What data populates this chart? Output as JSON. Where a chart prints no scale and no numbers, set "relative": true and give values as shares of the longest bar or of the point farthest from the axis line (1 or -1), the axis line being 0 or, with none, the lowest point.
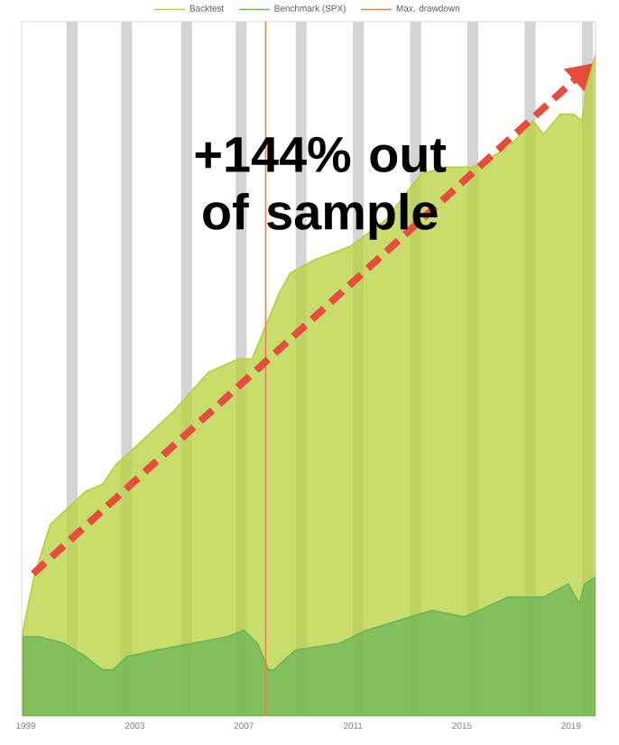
{
  "chart_data": {
    "type": "area",
    "relative": true,
    "legend": "top",
    "annotations": [
      "+144% out of sample"
    ],
    "xlim": [
      1998.85,
      2019.9
    ],
    "xticks": [
      1999,
      2003,
      2007,
      2011,
      2015,
      2019
    ],
    "ref_lines": [
      {
        "axis": "x",
        "value": 2007.8,
        "label": "Max. drawdown",
        "color": "#e8805c"
      }
    ],
    "bands": [
      {
        "axis": "x",
        "from": 2000.5,
        "to": 2000.9,
        "color": "#d4d4d4"
      },
      {
        "axis": "x",
        "from": 2002.5,
        "to": 2002.9,
        "color": "#d4d4d4"
      },
      {
        "axis": "x",
        "from": 2004.7,
        "to": 2005.1,
        "color": "#d4d4d4"
      },
      {
        "axis": "x",
        "from": 2006.7,
        "to": 2007.1,
        "color": "#d4d4d4"
      },
      {
        "axis": "x",
        "from": 2008.9,
        "to": 2009.3,
        "color": "#d4d4d4"
      },
      {
        "axis": "x",
        "from": 2011.0,
        "to": 2011.4,
        "color": "#d4d4d4"
      },
      {
        "axis": "x",
        "from": 2013.1,
        "to": 2013.5,
        "color": "#d4d4d4"
      },
      {
        "axis": "x",
        "from": 2015.2,
        "to": 2015.6,
        "color": "#d4d4d4"
      },
      {
        "axis": "x",
        "from": 2017.3,
        "to": 2017.7,
        "color": "#d4d4d4"
      },
      {
        "axis": "x",
        "from": 2019.4,
        "to": 2019.8,
        "color": "#d4d4d4"
      }
    ],
    "series": [
      {
        "name": "Backtest",
        "color": "#b5d13a",
        "x": [
          1998.9,
          1999.3,
          1999.9,
          2001.2,
          2001.8,
          2002.3,
          2003.1,
          2004.4,
          2005.7,
          2006.8,
          2007.3,
          2007.8,
          2008.0,
          2008.3,
          2008.7,
          2009.6,
          2010.9,
          2012.2,
          2013.5,
          2014.4,
          2015.4,
          2016.7,
          2017.6,
          2018.0,
          2018.6,
          2019.1,
          2019.4,
          2019.6,
          2019.9
        ],
        "values": [
          0.13,
          0.21,
          0.29,
          0.34,
          0.35,
          0.38,
          0.41,
          0.46,
          0.52,
          0.54,
          0.54,
          0.59,
          0.61,
          0.64,
          0.67,
          0.69,
          0.71,
          0.75,
          0.82,
          0.83,
          0.83,
          0.86,
          0.9,
          0.88,
          0.91,
          0.91,
          0.9,
          0.96,
          1.0
        ]
      },
      {
        "name": "Benchmark (SPX)",
        "color": "#6cb556",
        "x": [
          1998.9,
          1999.5,
          2000.4,
          2001.2,
          2001.8,
          2002.2,
          2002.7,
          2003.8,
          2005.1,
          2006.4,
          2007.0,
          2007.5,
          2007.9,
          2008.1,
          2008.9,
          2010.5,
          2011.5,
          2013.9,
          2015.1,
          2016.7,
          2018.0,
          2018.9,
          2019.3,
          2019.5,
          2019.9
        ],
        "values": [
          0.12,
          0.12,
          0.11,
          0.09,
          0.07,
          0.07,
          0.09,
          0.1,
          0.11,
          0.12,
          0.13,
          0.11,
          0.07,
          0.07,
          0.1,
          0.11,
          0.13,
          0.16,
          0.15,
          0.18,
          0.18,
          0.2,
          0.17,
          0.2,
          0.21
        ]
      }
    ]
  }
}
